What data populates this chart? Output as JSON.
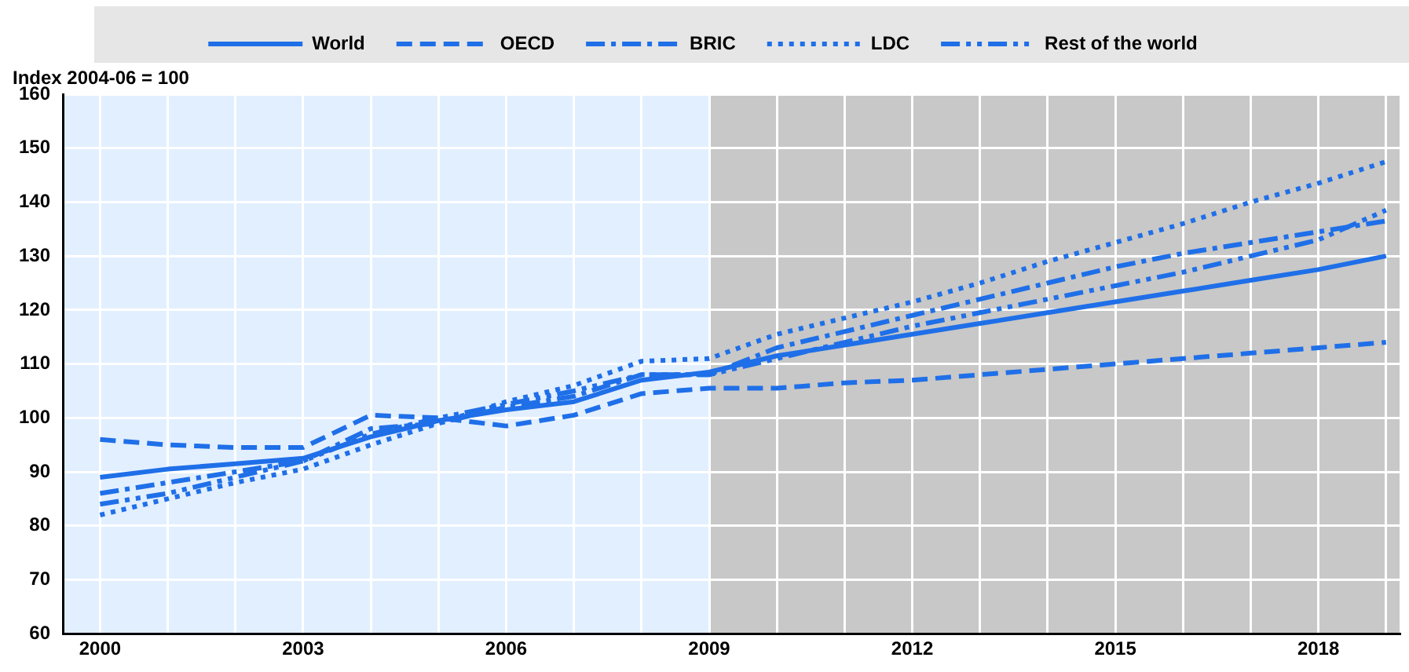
{
  "chart_data": {
    "type": "line",
    "ylabel": "Index 2004-06 = 100",
    "x": [
      2000,
      2001,
      2002,
      2003,
      2004,
      2005,
      2006,
      2007,
      2008,
      2009,
      2010,
      2011,
      2012,
      2013,
      2014,
      2015,
      2016,
      2017,
      2018,
      2019
    ],
    "series": [
      {
        "name": "World",
        "color": "#1f6fe8",
        "line_style": "solid",
        "values": [
          89,
          90.5,
          91.5,
          92.5,
          96.5,
          99.5,
          101.5,
          103,
          107,
          108.5,
          111.5,
          113.5,
          115.5,
          117.5,
          119.5,
          121.5,
          123.5,
          125.5,
          127.5,
          130
        ]
      },
      {
        "name": "OECD",
        "color": "#1f6fe8",
        "line_style": "dashed",
        "values": [
          96,
          95,
          94.5,
          94.5,
          100.5,
          100,
          98.5,
          100.5,
          104.5,
          105.5,
          105.5,
          106.5,
          107,
          108,
          109,
          110,
          111,
          112,
          113,
          114
        ]
      },
      {
        "name": "BRIC",
        "color": "#1f6fe8",
        "line_style": "dashdot",
        "values": [
          86,
          88,
          90,
          92,
          98,
          99,
          102,
          104,
          108,
          108,
          113,
          116,
          119,
          122,
          125,
          128,
          130.5,
          132.5,
          134.5,
          136.5
        ]
      },
      {
        "name": "LDC",
        "color": "#1f6fe8",
        "line_style": "dotted",
        "values": [
          82,
          85,
          88,
          90.5,
          95,
          99,
          103,
          106,
          110.5,
          111,
          115.5,
          118.5,
          121.5,
          125,
          129,
          132.5,
          136,
          140,
          143.5,
          147.5
        ]
      },
      {
        "name": "Rest of the world",
        "color": "#1f6fe8",
        "line_style": "dashdotdot",
        "values": [
          84,
          86,
          89,
          92,
          97,
          100,
          102.5,
          105,
          108,
          108,
          111,
          114,
          117,
          119.5,
          122,
          124.5,
          127,
          130,
          133,
          138.5
        ]
      }
    ],
    "xlim": [
      1999.45,
      2019.2
    ],
    "xticks": [
      2000,
      {
        "value": 2001,
        "label": null
      },
      {
        "value": 2002,
        "label": null
      },
      2003,
      {
        "value": 2004,
        "label": null
      },
      {
        "value": 2005,
        "label": null
      },
      2006,
      {
        "value": 2007,
        "label": null
      },
      {
        "value": 2008,
        "label": null
      },
      2009,
      {
        "value": 2010,
        "label": null
      },
      {
        "value": 2011,
        "label": null
      },
      2012,
      {
        "value": 2013,
        "label": null
      },
      {
        "value": 2014,
        "label": null
      },
      2015,
      {
        "value": 2016,
        "label": null
      },
      {
        "value": 2017,
        "label": null
      },
      2018,
      {
        "value": 2019,
        "label": null
      }
    ],
    "ylim": [
      60,
      160
    ],
    "yticks": [
      60,
      70,
      80,
      90,
      100,
      110,
      120,
      130,
      140,
      150,
      160
    ],
    "bands": [
      {
        "axis": "x",
        "from": 1999.45,
        "to": 2009,
        "color": "#e2efff"
      },
      {
        "axis": "x",
        "from": 2009,
        "to": 2019.2,
        "color": "#c8c8c8"
      }
    ],
    "grid": true,
    "legend": "top",
    "marker": "none"
  }
}
